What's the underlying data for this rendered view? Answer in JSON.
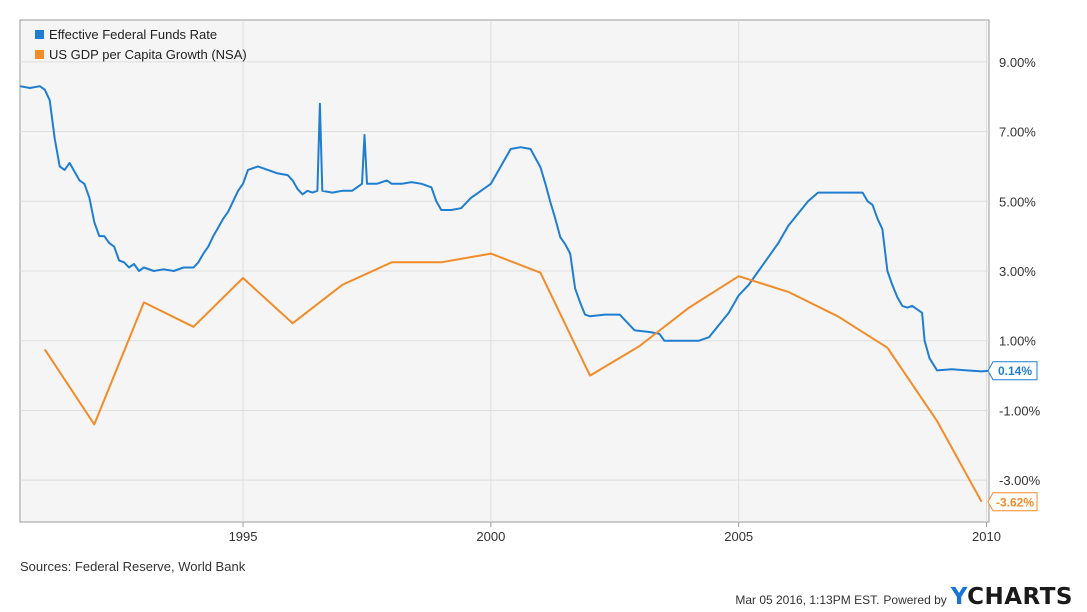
{
  "chart_data": {
    "type": "line",
    "x_range": [
      1990.5,
      2010.05
    ],
    "y_range": [
      -4.2,
      10.2
    ],
    "y_ticks": [
      -3,
      -1,
      1,
      3,
      5,
      7,
      9
    ],
    "y_tick_labels": [
      "-3.00%",
      "-1.00%",
      "1.00%",
      "3.00%",
      "5.00%",
      "7.00%",
      "9.00%"
    ],
    "x_ticks": [
      1995,
      2000,
      2005,
      2010
    ],
    "x_tick_labels": [
      "1995",
      "2000",
      "2005",
      "2010"
    ],
    "grid": true,
    "legend_position": "top-left",
    "series": [
      {
        "name": "Effective Federal Funds Rate",
        "color": "#1f7ed0",
        "end_label": "0.14%",
        "points": [
          [
            1990.5,
            8.3
          ],
          [
            1990.7,
            8.25
          ],
          [
            1990.9,
            8.3
          ],
          [
            1991.0,
            8.2
          ],
          [
            1991.1,
            7.9
          ],
          [
            1991.2,
            6.8
          ],
          [
            1991.3,
            6.0
          ],
          [
            1991.4,
            5.9
          ],
          [
            1991.5,
            6.1
          ],
          [
            1991.6,
            5.85
          ],
          [
            1991.7,
            5.6
          ],
          [
            1991.8,
            5.5
          ],
          [
            1991.9,
            5.1
          ],
          [
            1992.0,
            4.4
          ],
          [
            1992.1,
            4.0
          ],
          [
            1992.2,
            4.0
          ],
          [
            1992.3,
            3.8
          ],
          [
            1992.4,
            3.7
          ],
          [
            1992.5,
            3.3
          ],
          [
            1992.6,
            3.25
          ],
          [
            1992.7,
            3.1
          ],
          [
            1992.8,
            3.2
          ],
          [
            1992.9,
            3.0
          ],
          [
            1993.0,
            3.1
          ],
          [
            1993.2,
            3.0
          ],
          [
            1993.4,
            3.05
          ],
          [
            1993.6,
            3.0
          ],
          [
            1993.8,
            3.1
          ],
          [
            1994.0,
            3.1
          ],
          [
            1994.1,
            3.25
          ],
          [
            1994.2,
            3.5
          ],
          [
            1994.3,
            3.7
          ],
          [
            1994.4,
            4.0
          ],
          [
            1994.5,
            4.25
          ],
          [
            1994.6,
            4.5
          ],
          [
            1994.7,
            4.7
          ],
          [
            1994.8,
            5.0
          ],
          [
            1994.9,
            5.3
          ],
          [
            1995.0,
            5.5
          ],
          [
            1995.1,
            5.9
          ],
          [
            1995.3,
            6.0
          ],
          [
            1995.5,
            5.9
          ],
          [
            1995.7,
            5.8
          ],
          [
            1995.9,
            5.75
          ],
          [
            1996.0,
            5.6
          ],
          [
            1996.1,
            5.35
          ],
          [
            1996.2,
            5.2
          ],
          [
            1996.3,
            5.3
          ],
          [
            1996.4,
            5.25
          ],
          [
            1996.5,
            5.3
          ],
          [
            1996.55,
            7.8
          ],
          [
            1996.6,
            5.3
          ],
          [
            1996.8,
            5.25
          ],
          [
            1997.0,
            5.3
          ],
          [
            1997.2,
            5.3
          ],
          [
            1997.4,
            5.5
          ],
          [
            1997.45,
            6.9
          ],
          [
            1997.5,
            5.5
          ],
          [
            1997.7,
            5.5
          ],
          [
            1997.9,
            5.6
          ],
          [
            1998.0,
            5.5
          ],
          [
            1998.2,
            5.5
          ],
          [
            1998.4,
            5.55
          ],
          [
            1998.6,
            5.5
          ],
          [
            1998.8,
            5.4
          ],
          [
            1998.9,
            5.0
          ],
          [
            1999.0,
            4.75
          ],
          [
            1999.2,
            4.75
          ],
          [
            1999.4,
            4.8
          ],
          [
            1999.6,
            5.1
          ],
          [
            1999.8,
            5.3
          ],
          [
            2000.0,
            5.5
          ],
          [
            2000.2,
            6.0
          ],
          [
            2000.4,
            6.5
          ],
          [
            2000.6,
            6.55
          ],
          [
            2000.8,
            6.5
          ],
          [
            2001.0,
            5.98
          ],
          [
            2001.1,
            5.5
          ],
          [
            2001.2,
            4.98
          ],
          [
            2001.3,
            4.5
          ],
          [
            2001.4,
            3.97
          ],
          [
            2001.5,
            3.77
          ],
          [
            2001.6,
            3.5
          ],
          [
            2001.7,
            2.5
          ],
          [
            2001.8,
            2.1
          ],
          [
            2001.9,
            1.75
          ],
          [
            2002.0,
            1.7
          ],
          [
            2002.3,
            1.75
          ],
          [
            2002.6,
            1.75
          ],
          [
            2002.9,
            1.3
          ],
          [
            2003.2,
            1.25
          ],
          [
            2003.4,
            1.2
          ],
          [
            2003.5,
            1.0
          ],
          [
            2003.8,
            1.0
          ],
          [
            2004.2,
            1.0
          ],
          [
            2004.4,
            1.1
          ],
          [
            2004.6,
            1.45
          ],
          [
            2004.8,
            1.8
          ],
          [
            2005.0,
            2.3
          ],
          [
            2005.2,
            2.6
          ],
          [
            2005.4,
            3.0
          ],
          [
            2005.6,
            3.4
          ],
          [
            2005.8,
            3.8
          ],
          [
            2006.0,
            4.3
          ],
          [
            2006.2,
            4.65
          ],
          [
            2006.4,
            5.0
          ],
          [
            2006.6,
            5.25
          ],
          [
            2006.9,
            5.25
          ],
          [
            2007.2,
            5.25
          ],
          [
            2007.5,
            5.25
          ],
          [
            2007.6,
            5.0
          ],
          [
            2007.7,
            4.9
          ],
          [
            2007.8,
            4.5
          ],
          [
            2007.9,
            4.2
          ],
          [
            2008.0,
            3.0
          ],
          [
            2008.1,
            2.6
          ],
          [
            2008.2,
            2.25
          ],
          [
            2008.3,
            2.0
          ],
          [
            2008.4,
            1.95
          ],
          [
            2008.5,
            2.0
          ],
          [
            2008.6,
            1.9
          ],
          [
            2008.7,
            1.8
          ],
          [
            2008.75,
            1.0
          ],
          [
            2008.85,
            0.5
          ],
          [
            2009.0,
            0.15
          ],
          [
            2009.3,
            0.18
          ],
          [
            2009.6,
            0.15
          ],
          [
            2009.9,
            0.12
          ],
          [
            2010.05,
            0.14
          ]
        ]
      },
      {
        "name": "US GDP per Capita Growth (NSA)",
        "color": "#f28c28",
        "end_label": "-3.62%",
        "points": [
          [
            1991.0,
            0.75
          ],
          [
            1992.0,
            -1.4
          ],
          [
            1993.0,
            2.1
          ],
          [
            1994.0,
            1.4
          ],
          [
            1995.0,
            2.8
          ],
          [
            1996.0,
            1.5
          ],
          [
            1997.0,
            2.6
          ],
          [
            1998.0,
            3.25
          ],
          [
            1999.0,
            3.25
          ],
          [
            2000.0,
            3.5
          ],
          [
            2001.0,
            2.95
          ],
          [
            2002.0,
            0.0
          ],
          [
            2003.0,
            0.85
          ],
          [
            2004.0,
            1.95
          ],
          [
            2005.0,
            2.85
          ],
          [
            2006.0,
            2.4
          ],
          [
            2007.0,
            1.7
          ],
          [
            2008.0,
            0.8
          ],
          [
            2009.0,
            -1.3
          ],
          [
            2009.9,
            -3.62
          ]
        ]
      }
    ]
  },
  "sources_text": "Sources: Federal Reserve, World Bank",
  "footer": {
    "timestamp": "Mar 05 2016, 1:13PM EST.",
    "powered_by": "Powered by",
    "brand_first": "Y",
    "brand_rest": "CHARTS"
  }
}
